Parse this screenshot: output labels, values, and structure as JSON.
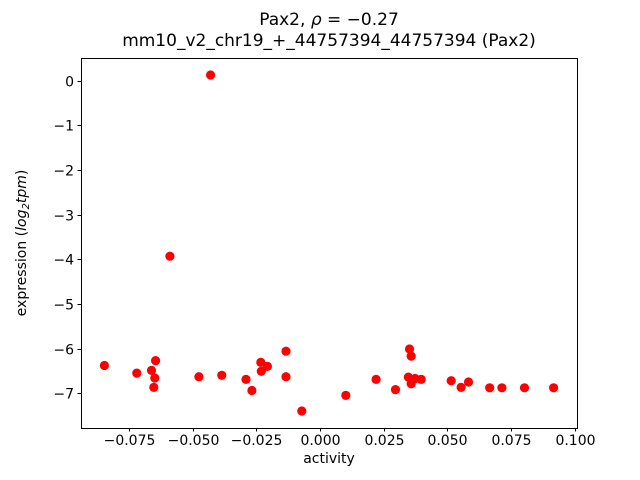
{
  "figure": {
    "title_gene": "Pax2, ",
    "title_rho_symbol": "ρ",
    "title_rho_rest": " = −0.27",
    "subtitle": "mm10_v2_chr19_+_44757394_44757394 (Pax2)",
    "xlabel": "activity",
    "ylabel_prefix": "expression (",
    "ylabel_log": "log",
    "ylabel_sub": "2",
    "ylabel_tpm": "tpm",
    "ylabel_suffix": ")"
  },
  "chart_data": {
    "type": "scatter",
    "title": "Pax2, ρ = −0.27",
    "subtitle": "mm10_v2_chr19_+_44757394_44757394 (Pax2)",
    "xlabel": "activity",
    "ylabel": "expression (log2 tpm)",
    "marker_color": "#ff0000",
    "marker_radius_px": 4.6,
    "axis_color": "#000000",
    "grid": false,
    "legend": false,
    "xlim": [
      -0.0939,
      0.1009
    ],
    "ylim": [
      -7.78,
      0.51
    ],
    "x_ticks": [
      -0.075,
      -0.05,
      -0.025,
      0.0,
      0.025,
      0.05,
      0.075,
      0.1
    ],
    "x_tick_labels": [
      "−0.075",
      "−0.050",
      "−0.025",
      "0.000",
      "0.025",
      "0.050",
      "0.075",
      "0.100"
    ],
    "y_ticks": [
      0,
      -1,
      -2,
      -3,
      -4,
      -5,
      -6,
      -7
    ],
    "y_tick_labels": [
      "0",
      "−1",
      "−2",
      "−3",
      "−4",
      "−5",
      "−6",
      "−7"
    ],
    "points": [
      [
        -0.043,
        0.13
      ],
      [
        -0.059,
        -3.93
      ],
      [
        -0.0847,
        -6.38
      ],
      [
        -0.072,
        -6.55
      ],
      [
        -0.0646,
        -6.27
      ],
      [
        -0.0662,
        -6.49
      ],
      [
        -0.0649,
        -6.66
      ],
      [
        -0.0653,
        -6.87
      ],
      [
        -0.0476,
        -6.63
      ],
      [
        -0.0386,
        -6.6
      ],
      [
        -0.0291,
        -6.69
      ],
      [
        -0.0268,
        -6.94
      ],
      [
        -0.0233,
        -6.31
      ],
      [
        -0.0207,
        -6.4
      ],
      [
        -0.0231,
        -6.51
      ],
      [
        -0.0134,
        -6.06
      ],
      [
        -0.0134,
        -6.63
      ],
      [
        -0.0072,
        -7.4
      ],
      [
        0.0101,
        -7.05
      ],
      [
        0.022,
        -6.69
      ],
      [
        0.0296,
        -6.92
      ],
      [
        0.0351,
        -6.01
      ],
      [
        0.0358,
        -6.17
      ],
      [
        0.0347,
        -6.64
      ],
      [
        0.0373,
        -6.67
      ],
      [
        0.0358,
        -6.79
      ],
      [
        0.0397,
        -6.69
      ],
      [
        0.0515,
        -6.72
      ],
      [
        0.0554,
        -6.87
      ],
      [
        0.0583,
        -6.75
      ],
      [
        0.0666,
        -6.88
      ],
      [
        0.0714,
        -6.88
      ],
      [
        0.0803,
        -6.88
      ],
      [
        0.0917,
        -6.88
      ]
    ]
  }
}
